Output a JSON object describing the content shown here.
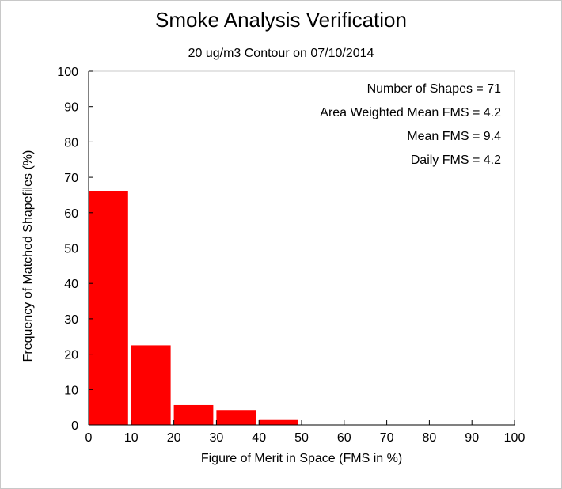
{
  "chart_data": {
    "type": "bar",
    "title": "Smoke Analysis Verification",
    "subtitle": "20 ug/m3 Contour on 07/10/2014",
    "xlabel": "Figure of Merit in Space (FMS in %)",
    "ylabel": "Frequency of Matched Shapefiles (%)",
    "xlim": [
      0,
      100
    ],
    "ylim": [
      0,
      100
    ],
    "xticks": [
      0,
      10,
      20,
      30,
      40,
      50,
      60,
      70,
      80,
      90,
      100
    ],
    "yticks": [
      0,
      10,
      20,
      30,
      40,
      50,
      60,
      70,
      80,
      90,
      100
    ],
    "bins": [
      {
        "start": 0,
        "end": 10,
        "value": 66.2
      },
      {
        "start": 10,
        "end": 20,
        "value": 22.5
      },
      {
        "start": 20,
        "end": 30,
        "value": 5.6
      },
      {
        "start": 30,
        "end": 40,
        "value": 4.2
      },
      {
        "start": 40,
        "end": 50,
        "value": 1.4
      },
      {
        "start": 50,
        "end": 60,
        "value": 0
      },
      {
        "start": 60,
        "end": 70,
        "value": 0
      },
      {
        "start": 70,
        "end": 80,
        "value": 0
      },
      {
        "start": 80,
        "end": 90,
        "value": 0
      },
      {
        "start": 90,
        "end": 100,
        "value": 0
      },
      {
        "start": 100,
        "end": 110,
        "value": 0
      }
    ],
    "bar_color": "#ff0000",
    "grid": false,
    "annotations": [
      "Number of Shapes = 71",
      "Area Weighted Mean FMS = 4.2",
      "Mean FMS = 9.4",
      "Daily FMS = 4.2"
    ]
  }
}
